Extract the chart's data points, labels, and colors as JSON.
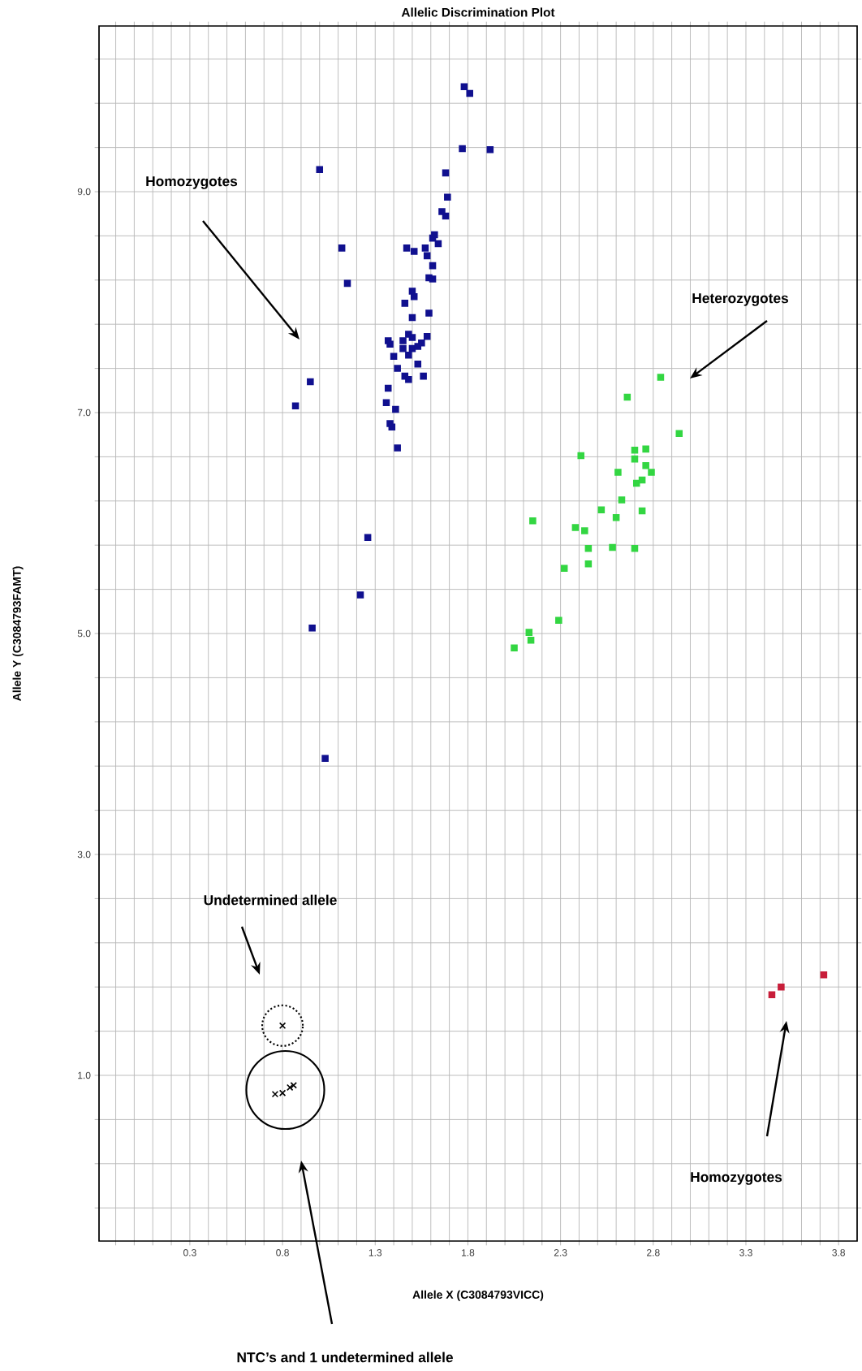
{
  "chart_data": {
    "type": "scatter",
    "title": "Allelic Discrimination Plot",
    "xlabel": "Allele X (C3084793VICC)",
    "ylabel": "Allele Y (C3084793FAMT)",
    "xlim": [
      -0.19,
      3.9
    ],
    "ylim": [
      -0.5,
      10.5
    ],
    "xticks": [
      {
        "value": -0.1,
        "label": null
      },
      {
        "value": 0.0,
        "label": null
      },
      {
        "value": 0.1,
        "label": null
      },
      {
        "value": 0.2,
        "label": null
      },
      0.3,
      {
        "value": 0.4,
        "label": null
      },
      {
        "value": 0.5,
        "label": null
      },
      {
        "value": 0.6,
        "label": null
      },
      {
        "value": 0.7,
        "label": null
      },
      0.8,
      {
        "value": 0.9,
        "label": null
      },
      {
        "value": 1.0,
        "label": null
      },
      {
        "value": 1.1,
        "label": null
      },
      {
        "value": 1.2,
        "label": null
      },
      1.3,
      {
        "value": 1.4,
        "label": null
      },
      {
        "value": 1.5,
        "label": null
      },
      {
        "value": 1.6,
        "label": null
      },
      {
        "value": 1.7,
        "label": null
      },
      1.8,
      {
        "value": 1.9,
        "label": null
      },
      {
        "value": 2.0,
        "label": null
      },
      {
        "value": 2.1,
        "label": null
      },
      {
        "value": 2.2,
        "label": null
      },
      2.3,
      {
        "value": 2.4,
        "label": null
      },
      {
        "value": 2.5,
        "label": null
      },
      {
        "value": 2.6,
        "label": null
      },
      {
        "value": 2.7,
        "label": null
      },
      2.8,
      {
        "value": 2.9,
        "label": null
      },
      {
        "value": 3.0,
        "label": null
      },
      {
        "value": 3.1,
        "label": null
      },
      {
        "value": 3.2,
        "label": null
      },
      3.3,
      {
        "value": 3.4,
        "label": null
      },
      {
        "value": 3.5,
        "label": null
      },
      {
        "value": 3.6,
        "label": null
      },
      {
        "value": 3.7,
        "label": null
      },
      3.8
    ],
    "yticks": [
      {
        "value": -0.2,
        "label": null
      },
      {
        "value": 0.2,
        "label": null
      },
      {
        "value": 0.6,
        "label": null
      },
      {
        "value": 1.0,
        "label": "1.0"
      },
      {
        "value": 1.4,
        "label": null
      },
      {
        "value": 1.8,
        "label": null
      },
      {
        "value": 2.2,
        "label": null
      },
      {
        "value": 2.6,
        "label": null
      },
      {
        "value": 3.0,
        "label": "3.0"
      },
      {
        "value": 3.4,
        "label": null
      },
      {
        "value": 3.8,
        "label": null
      },
      {
        "value": 4.2,
        "label": null
      },
      {
        "value": 4.6,
        "label": null
      },
      {
        "value": 5.0,
        "label": "5.0"
      },
      {
        "value": 5.4,
        "label": null
      },
      {
        "value": 5.8,
        "label": null
      },
      {
        "value": 6.2,
        "label": null
      },
      {
        "value": 6.6,
        "label": null
      },
      {
        "value": 7.0,
        "label": "7.0"
      },
      {
        "value": 7.4,
        "label": null
      },
      {
        "value": 7.8,
        "label": null
      },
      {
        "value": 8.2,
        "label": null
      },
      {
        "value": 8.6,
        "label": null
      },
      {
        "value": 9.0,
        "label": "9.0"
      },
      {
        "value": 9.4,
        "label": null
      },
      {
        "value": 9.8,
        "label": null
      },
      {
        "value": 10.2,
        "label": null
      }
    ],
    "grid": true,
    "series": [
      {
        "color": "#10108f",
        "marker": "square",
        "x": [
          1.78,
          1.81,
          1.77,
          1.92,
          1.0,
          1.68,
          1.69,
          1.66,
          1.68,
          1.62,
          1.61,
          1.64,
          1.12,
          1.47,
          1.51,
          1.57,
          1.58,
          1.61,
          1.59,
          1.61,
          1.15,
          1.5,
          1.51,
          1.46,
          1.59,
          1.5,
          1.37,
          1.38,
          1.48,
          1.5,
          1.58,
          1.45,
          1.55,
          1.53,
          1.45,
          1.5,
          1.4,
          1.48,
          1.53,
          1.42,
          1.46,
          1.48,
          1.56,
          0.95,
          0.87,
          1.37,
          1.36,
          1.41,
          1.38,
          1.39,
          1.42,
          1.26,
          1.22,
          0.96,
          1.03
        ],
        "values": [
          9.95,
          9.89,
          9.39,
          9.38,
          9.2,
          9.17,
          8.95,
          8.82,
          8.78,
          8.61,
          8.58,
          8.53,
          8.49,
          8.49,
          8.46,
          8.49,
          8.42,
          8.33,
          8.22,
          8.21,
          8.17,
          8.1,
          8.05,
          7.99,
          7.9,
          7.86,
          7.65,
          7.62,
          7.71,
          7.68,
          7.69,
          7.65,
          7.63,
          7.6,
          7.58,
          7.58,
          7.51,
          7.52,
          7.44,
          7.4,
          7.33,
          7.3,
          7.33,
          7.28,
          7.06,
          7.22,
          7.09,
          7.03,
          6.9,
          6.87,
          6.68,
          5.87,
          5.35,
          5.05,
          3.87
        ]
      },
      {
        "color": "#33d642",
        "marker": "square",
        "x": [
          2.84,
          2.66,
          2.94,
          2.7,
          2.76,
          2.41,
          2.7,
          2.76,
          2.79,
          2.61,
          2.74,
          2.71,
          2.63,
          2.52,
          2.74,
          2.6,
          2.15,
          2.38,
          2.43,
          2.45,
          2.58,
          2.7,
          2.45,
          2.32,
          2.29,
          2.13,
          2.14,
          2.05
        ],
        "values": [
          7.32,
          7.14,
          6.81,
          6.66,
          6.67,
          6.61,
          6.58,
          6.52,
          6.46,
          6.46,
          6.39,
          6.36,
          6.21,
          6.12,
          6.11,
          6.05,
          6.02,
          5.96,
          5.93,
          5.77,
          5.78,
          5.77,
          5.63,
          5.59,
          5.12,
          5.01,
          4.94,
          4.87
        ]
      },
      {
        "color": "#c81e3a",
        "marker": "square",
        "x": [
          3.44,
          3.49,
          3.72
        ],
        "values": [
          1.73,
          1.8,
          1.91
        ]
      },
      {
        "color": "#000000",
        "marker": "cross",
        "x": [
          0.8
        ],
        "values": [
          1.45
        ]
      },
      {
        "color": "#000000",
        "marker": "cross",
        "x": [
          0.76,
          0.8,
          0.84,
          0.86
        ],
        "values": [
          0.83,
          0.84,
          0.89,
          0.91
        ]
      }
    ],
    "annotations": [
      "Homozygotes",
      "Heterozygotes",
      "Undetermined allele",
      "Homozygotes",
      "NTC’s and 1 undetermined allele"
    ]
  }
}
